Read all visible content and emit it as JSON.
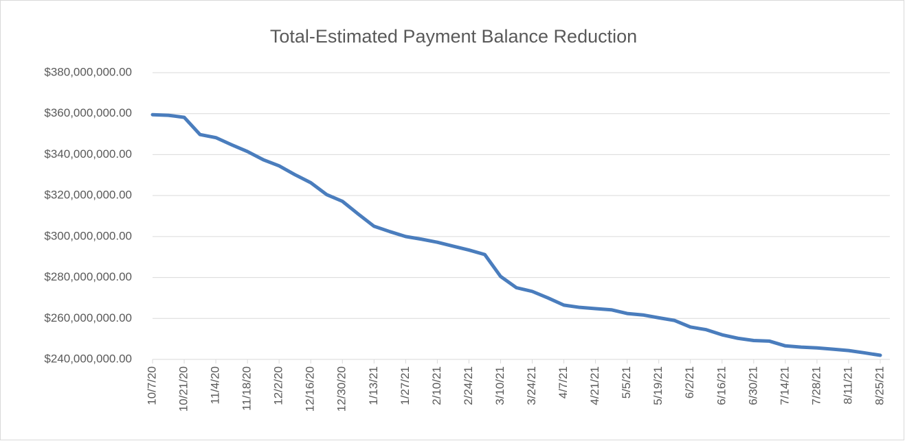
{
  "chart_data": {
    "type": "line",
    "title": "Total-Estimated Payment Balance Reduction",
    "categories": [
      "10/7/20",
      null,
      "10/21/20",
      null,
      "11/4/20",
      null,
      "11/18/20",
      null,
      "12/2/20",
      null,
      "12/16/20",
      null,
      "12/30/20",
      null,
      "1/13/21",
      null,
      "1/27/21",
      null,
      "2/10/21",
      null,
      "2/24/21",
      null,
      "3/10/21",
      null,
      "3/24/21",
      null,
      "4/7/21",
      null,
      "4/21/21",
      null,
      "5/5/21",
      null,
      "5/19/21",
      null,
      "6/2/21",
      null,
      "6/16/21",
      null,
      "6/30/21",
      null,
      "7/14/21",
      null,
      "7/28/21",
      null,
      "8/11/21",
      null,
      "8/25/21"
    ],
    "series": [
      {
        "name": "Total-Estimated Payment Balance Reduction",
        "color": "#4a7dbd",
        "values": [
          359500000,
          359200000,
          358200000,
          349800000,
          348300000,
          344800000,
          341500000,
          337500000,
          334500000,
          330200000,
          326300000,
          320500000,
          317200000,
          311000000,
          305000000,
          302400000,
          300000000,
          298700000,
          297200000,
          295300000,
          293400000,
          291200000,
          280500000,
          275000000,
          273200000,
          270000000,
          266500000,
          265400000,
          264800000,
          264200000,
          262400000,
          261700000,
          260300000,
          259000000,
          255800000,
          254500000,
          252000000,
          250300000,
          249200000,
          248900000,
          246600000,
          246000000,
          245600000,
          245000000,
          244300000,
          243200000,
          242000000
        ]
      }
    ],
    "ylim": [
      240000000,
      380000000
    ],
    "yticks": [
      {
        "value": 240000000,
        "label": "$240,000,000.00"
      },
      {
        "value": 260000000,
        "label": "$260,000,000.00"
      },
      {
        "value": 280000000,
        "label": "$280,000,000.00"
      },
      {
        "value": 300000000,
        "label": "$300,000,000.00"
      },
      {
        "value": 320000000,
        "label": "$320,000,000.00"
      },
      {
        "value": 340000000,
        "label": "$340,000,000.00"
      },
      {
        "value": 360000000,
        "label": "$360,000,000.00"
      },
      {
        "value": 380000000,
        "label": "$380,000,000.00"
      }
    ],
    "grid": true
  }
}
